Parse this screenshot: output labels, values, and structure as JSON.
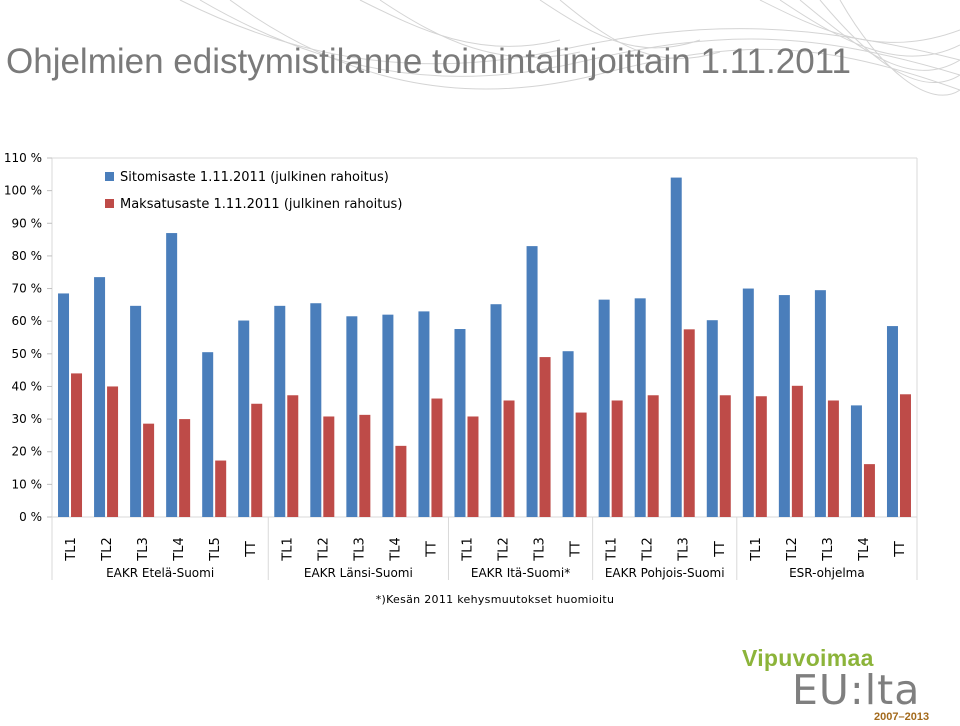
{
  "title": "Ohjelmien edistymistilanne toimintalinjoittain 1.11.2011",
  "footnote": "*)Kesän 2011 kehysmuutokset huomioitu",
  "logo": {
    "name": "Vipuvoimaa",
    "sub": "EU:lta",
    "period": "2007–2013",
    "colors": {
      "name": "#8cb43a",
      "sub": "#7f7f7f",
      "period": "#a36a1c"
    }
  },
  "chart_data": {
    "type": "bar",
    "title": "",
    "xlabel": "",
    "ylabel": "",
    "ylim": [
      0,
      110
    ],
    "yticks": [
      0,
      10,
      20,
      30,
      40,
      50,
      60,
      70,
      80,
      90,
      100,
      110
    ],
    "ytick_labels": [
      "0 %",
      "10 %",
      "20 %",
      "30 %",
      "40 %",
      "50 %",
      "60 %",
      "70 %",
      "80 %",
      "90 %",
      "100 %",
      "110 %"
    ],
    "grid": false,
    "legend_position": "top-left",
    "groups": [
      {
        "label": "EAKR Etelä-Suomi",
        "size": 6
      },
      {
        "label": "EAKR Länsi-Suomi",
        "size": 5
      },
      {
        "label": "EAKR Itä-Suomi*",
        "size": 4
      },
      {
        "label": "EAKR Pohjois-Suomi",
        "size": 4
      },
      {
        "label": "ESR-ohjelma",
        "size": 5
      }
    ],
    "categories": [
      "TL1",
      "TL2",
      "TL3",
      "TL4",
      "TL5",
      "TT",
      "TL1",
      "TL2",
      "TL3",
      "TL4",
      "TT",
      "TL1",
      "TL2",
      "TL3",
      "TT",
      "TL1",
      "TL2",
      "TL3",
      "TT",
      "TL1",
      "TL2",
      "TL3",
      "TL4",
      "TT"
    ],
    "series": [
      {
        "name": "Sitomisaste 1.11.2011 (julkinen rahoitus)",
        "color": "#4a7ebb",
        "values": [
          68.5,
          73.5,
          64.7,
          87,
          50.5,
          60.2,
          64.7,
          65.5,
          61.5,
          62,
          63,
          57.6,
          65.2,
          83,
          50.8,
          66.6,
          67,
          104,
          60.3,
          70,
          68,
          69.5,
          34.2,
          58.5
        ]
      },
      {
        "name": "Maksatusaste 1.11.2011 (julkinen rahoitus)",
        "color": "#be4b48",
        "values": [
          44,
          40,
          28.6,
          30,
          17.3,
          34.7,
          37.3,
          30.8,
          31.3,
          21.8,
          36.3,
          30.8,
          35.7,
          49,
          32,
          35.7,
          37.3,
          57.5,
          37.3,
          37,
          40.2,
          35.7,
          16.2,
          37.6
        ]
      }
    ]
  }
}
